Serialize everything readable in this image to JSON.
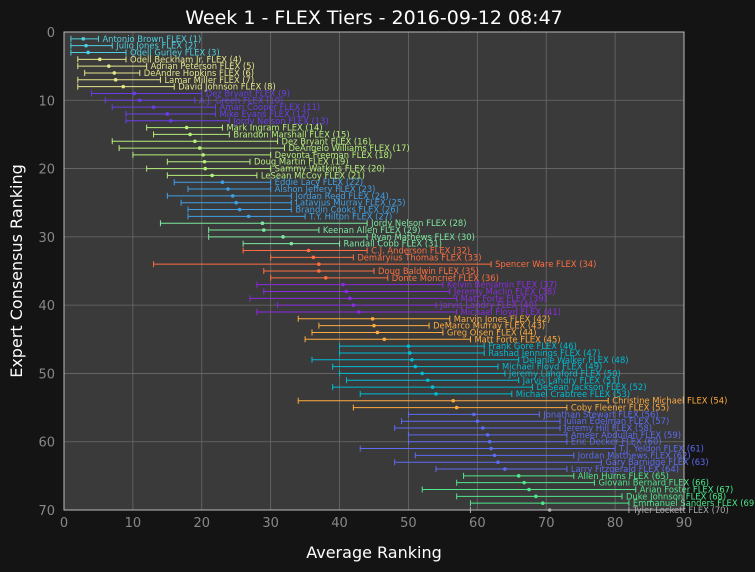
{
  "chart_data": {
    "type": "scatter",
    "title": "Week 1 - FLEX Tiers - 2016-09-12 08:47",
    "xlabel": "Average Ranking",
    "ylabel": "Expert Consensus Ranking",
    "xlim": [
      0,
      90
    ],
    "ylim": [
      70,
      0
    ],
    "xticks": [
      "0",
      "10",
      "20",
      "30",
      "40",
      "50",
      "60",
      "70",
      "80",
      "90"
    ],
    "yticks": [
      "0",
      "10",
      "20",
      "30",
      "40",
      "50",
      "60",
      "70"
    ],
    "grid": true,
    "tier_colors": [
      "#4dd0e1",
      "#e6e68a",
      "#6a3de8",
      "#b5f07a",
      "#3fa0e6",
      "#7de8a0",
      "#ff6e40",
      "#8a2be2",
      "#ffab40",
      "#00bcd4",
      "#5c6bf2",
      "#4fe88a",
      "#aaaaaa"
    ],
    "points": [
      {
        "label": "Antonio Brown FLEX (1)",
        "rank": 1,
        "avg": 2.8,
        "min": 1,
        "max": 5,
        "tier": 0
      },
      {
        "label": "Julio Jones FLEX (2)",
        "rank": 2,
        "avg": 3.2,
        "min": 1,
        "max": 7,
        "tier": 0
      },
      {
        "label": "Odell Gurley FLEX (3)",
        "rank": 3,
        "avg": 3.5,
        "min": 1,
        "max": 9,
        "tier": 0
      },
      {
        "label": "Odell Beckham Jr. FLEX (4)",
        "rank": 4,
        "avg": 5.2,
        "min": 2,
        "max": 9,
        "tier": 1
      },
      {
        "label": "Adrian Peterson FLEX (5)",
        "rank": 5,
        "avg": 6.5,
        "min": 2,
        "max": 12,
        "tier": 1
      },
      {
        "label": "DeAndre Hopkins FLEX (6)",
        "rank": 6,
        "avg": 7.3,
        "min": 3,
        "max": 11,
        "tier": 1
      },
      {
        "label": "Lamar Miller FLEX (7)",
        "rank": 7,
        "avg": 7.5,
        "min": 2,
        "max": 14,
        "tier": 1
      },
      {
        "label": "David Johnson FLEX (8)",
        "rank": 8,
        "avg": 8.6,
        "min": 2,
        "max": 16,
        "tier": 1
      },
      {
        "label": "Dez Bryant FLEX (9)",
        "rank": 9,
        "avg": 10.2,
        "min": 4,
        "max": 20,
        "tier": 2
      },
      {
        "label": "A.J. Green FLEX (10)",
        "rank": 10,
        "avg": 11.0,
        "min": 6,
        "max": 19,
        "tier": 2
      },
      {
        "label": "Amari Cooper FLEX (11)",
        "rank": 11,
        "avg": 13.0,
        "min": 7,
        "max": 22,
        "tier": 2
      },
      {
        "label": "Mike Evans FLEX (12)",
        "rank": 12,
        "avg": 15.0,
        "min": 9,
        "max": 22,
        "tier": 2
      },
      {
        "label": "Jordy Nelson FLEX (13)",
        "rank": 13,
        "avg": 15.5,
        "min": 9,
        "max": 24,
        "tier": 2
      },
      {
        "label": "Mark Ingram FLEX (14)",
        "rank": 14,
        "avg": 17.8,
        "min": 12,
        "max": 23,
        "tier": 3
      },
      {
        "label": "Brandon Marshall FLEX (15)",
        "rank": 15,
        "avg": 18.3,
        "min": 13,
        "max": 24,
        "tier": 3
      },
      {
        "label": "Dez Bryant FLEX (16)",
        "rank": 16,
        "avg": 19.0,
        "min": 7,
        "max": 31,
        "tier": 3
      },
      {
        "label": "DeAngelo Williams FLEX (17)",
        "rank": 17,
        "avg": 19.7,
        "min": 8,
        "max": 32,
        "tier": 3
      },
      {
        "label": "Devonta Freeman FLEX (18)",
        "rank": 18,
        "avg": 20.2,
        "min": 10,
        "max": 30,
        "tier": 3
      },
      {
        "label": "Doug Martin FLEX (19)",
        "rank": 19,
        "avg": 20.4,
        "min": 15,
        "max": 27,
        "tier": 3
      },
      {
        "label": "Sammy Watkins FLEX (20)",
        "rank": 20,
        "avg": 20.5,
        "min": 12,
        "max": 30,
        "tier": 3
      },
      {
        "label": "LeSean McCoy FLEX (21)",
        "rank": 21,
        "avg": 21.5,
        "min": 15,
        "max": 28,
        "tier": 3
      },
      {
        "label": "Eddie Lacy FLEX (22)",
        "rank": 22,
        "avg": 23.0,
        "min": 16,
        "max": 30,
        "tier": 4
      },
      {
        "label": "Alshon Jeffery FLEX (23)",
        "rank": 23,
        "avg": 23.8,
        "min": 18,
        "max": 30,
        "tier": 4
      },
      {
        "label": "Jordan Reed FLEX (24)",
        "rank": 24,
        "avg": 24.5,
        "min": 15,
        "max": 33,
        "tier": 4
      },
      {
        "label": "Latavius Murray FLEX (25)",
        "rank": 25,
        "avg": 25.0,
        "min": 17,
        "max": 33,
        "tier": 4
      },
      {
        "label": "Brandin Cooks FLEX (26)",
        "rank": 26,
        "avg": 25.5,
        "min": 18,
        "max": 33,
        "tier": 4
      },
      {
        "label": "T.Y. Hilton FLEX (27)",
        "rank": 27,
        "avg": 26.8,
        "min": 18,
        "max": 35,
        "tier": 4
      },
      {
        "label": "Jordy Nelson FLEX (28)",
        "rank": 28,
        "avg": 28.8,
        "min": 14,
        "max": 44,
        "tier": 5
      },
      {
        "label": "Keenan Allen FLEX (29)",
        "rank": 29,
        "avg": 29.0,
        "min": 21,
        "max": 37,
        "tier": 5
      },
      {
        "label": "Ryan Mathews FLEX (30)",
        "rank": 30,
        "avg": 31.8,
        "min": 21,
        "max": 44,
        "tier": 5
      },
      {
        "label": "Randall Cobb FLEX (31)",
        "rank": 31,
        "avg": 33.0,
        "min": 26,
        "max": 40,
        "tier": 5
      },
      {
        "label": "C.J. Anderson FLEX (32)",
        "rank": 32,
        "avg": 35.5,
        "min": 26,
        "max": 44,
        "tier": 6
      },
      {
        "label": "Demaryius Thomas FLEX (33)",
        "rank": 33,
        "avg": 36.2,
        "min": 30,
        "max": 42,
        "tier": 6
      },
      {
        "label": "Spencer Ware FLEX (34)",
        "rank": 34,
        "avg": 37.0,
        "min": 13,
        "max": 62,
        "tier": 6
      },
      {
        "label": "Doug Baldwin FLEX (35)",
        "rank": 35,
        "avg": 37.0,
        "min": 29,
        "max": 45,
        "tier": 6
      },
      {
        "label": "Donte Moncrief FLEX (36)",
        "rank": 36,
        "avg": 38.0,
        "min": 30,
        "max": 47,
        "tier": 6
      },
      {
        "label": "Kelvin Benjamin FLEX (37)",
        "rank": 37,
        "avg": 40.5,
        "min": 28,
        "max": 55,
        "tier": 7
      },
      {
        "label": "Jeremy Maclin FLEX (38)",
        "rank": 38,
        "avg": 41.0,
        "min": 29,
        "max": 56,
        "tier": 7
      },
      {
        "label": "Matt Forte FLEX (39)",
        "rank": 39,
        "avg": 41.5,
        "min": 27,
        "max": 57,
        "tier": 7
      },
      {
        "label": "Jarvis Landry FLEX (40)",
        "rank": 40,
        "avg": 42.0,
        "min": 31,
        "max": 54,
        "tier": 7
      },
      {
        "label": "Michael Floyd FLEX (41)",
        "rank": 41,
        "avg": 42.8,
        "min": 28,
        "max": 57,
        "tier": 7
      },
      {
        "label": "Marvin Jones FLEX (42)",
        "rank": 42,
        "avg": 44.8,
        "min": 34,
        "max": 56,
        "tier": 8
      },
      {
        "label": "DeMarco Murray FLEX (43)",
        "rank": 43,
        "avg": 45.0,
        "min": 37,
        "max": 53,
        "tier": 8
      },
      {
        "label": "Greg Olsen FLEX (44)",
        "rank": 44,
        "avg": 45.5,
        "min": 36,
        "max": 55,
        "tier": 8
      },
      {
        "label": "Matt Forte FLEX (45)",
        "rank": 45,
        "avg": 46.5,
        "min": 35,
        "max": 59,
        "tier": 8
      },
      {
        "label": "Frank Gore FLEX (46)",
        "rank": 46,
        "avg": 50.0,
        "min": 40,
        "max": 61,
        "tier": 9
      },
      {
        "label": "Rashad Jennings FLEX (47)",
        "rank": 47,
        "avg": 50.2,
        "min": 40,
        "max": 61,
        "tier": 9
      },
      {
        "label": "Delanie Walker FLEX (48)",
        "rank": 48,
        "avg": 50.5,
        "min": 36,
        "max": 66,
        "tier": 9
      },
      {
        "label": "Michael Floyd FLEX (49)",
        "rank": 49,
        "avg": 51.0,
        "min": 39,
        "max": 63,
        "tier": 9
      },
      {
        "label": "Jeremy Langford FLEX (50)",
        "rank": 50,
        "avg": 52.0,
        "min": 40,
        "max": 64,
        "tier": 9
      },
      {
        "label": "Jarvis Landry FLEX (51)",
        "rank": 51,
        "avg": 52.8,
        "min": 41,
        "max": 66,
        "tier": 9
      },
      {
        "label": "DeSean Jackson FLEX (52)",
        "rank": 52,
        "avg": 53.5,
        "min": 39,
        "max": 68,
        "tier": 9
      },
      {
        "label": "Michael Crabtree FLEX (53)",
        "rank": 53,
        "avg": 54.0,
        "min": 43,
        "max": 65,
        "tier": 9
      },
      {
        "label": "Christine Michael FLEX (54)",
        "rank": 54,
        "avg": 56.5,
        "min": 34,
        "max": 79,
        "tier": 8
      },
      {
        "label": "Coby Fleener FLEX (55)",
        "rank": 55,
        "avg": 57.0,
        "min": 42,
        "max": 73,
        "tier": 8
      },
      {
        "label": "Jonathan Stewart FLEX (56)",
        "rank": 56,
        "avg": 59.5,
        "min": 50,
        "max": 69,
        "tier": 10
      },
      {
        "label": "Julian Edelman FLEX (57)",
        "rank": 57,
        "avg": 60.0,
        "min": 49,
        "max": 72,
        "tier": 10
      },
      {
        "label": "Jeremy Hill FLEX (58)",
        "rank": 58,
        "avg": 60.8,
        "min": 48,
        "max": 72,
        "tier": 10
      },
      {
        "label": "Ameer Abdullah FLEX (59)",
        "rank": 59,
        "avg": 61.5,
        "min": 50,
        "max": 73,
        "tier": 10
      },
      {
        "label": "Eric Decker FLEX (60)",
        "rank": 60,
        "avg": 61.8,
        "min": 50,
        "max": 73,
        "tier": 10
      },
      {
        "label": "T.J. Yeldon FLEX (61)",
        "rank": 61,
        "avg": 62.0,
        "min": 43,
        "max": 80,
        "tier": 10
      },
      {
        "label": "Jordan Matthews FLEX (62)",
        "rank": 62,
        "avg": 62.5,
        "min": 51,
        "max": 74,
        "tier": 10
      },
      {
        "label": "Gary Barnidge FLEX (63)",
        "rank": 63,
        "avg": 63.0,
        "min": 48,
        "max": 78,
        "tier": 10
      },
      {
        "label": "Larry Fitzgerald FLEX (64)",
        "rank": 64,
        "avg": 64.0,
        "min": 54,
        "max": 73,
        "tier": 10
      },
      {
        "label": "Allen Hurns FLEX (65)",
        "rank": 65,
        "avg": 66.0,
        "min": 58,
        "max": 74,
        "tier": 11
      },
      {
        "label": "Giovani Bernard FLEX (66)",
        "rank": 66,
        "avg": 66.8,
        "min": 57,
        "max": 77,
        "tier": 11
      },
      {
        "label": "Arian Foster FLEX (67)",
        "rank": 67,
        "avg": 67.5,
        "min": 52,
        "max": 83,
        "tier": 11
      },
      {
        "label": "Duke Johnson FLEX (68)",
        "rank": 68,
        "avg": 68.5,
        "min": 57,
        "max": 81,
        "tier": 11
      },
      {
        "label": "Emmanuel Sanders FLEX (69)",
        "rank": 69,
        "avg": 69.5,
        "min": 59,
        "max": 82,
        "tier": 11
      },
      {
        "label": "Tyler Lockett FLEX (70)",
        "rank": 70,
        "avg": 70.5,
        "min": 59,
        "max": 82,
        "tier": 12
      }
    ]
  }
}
